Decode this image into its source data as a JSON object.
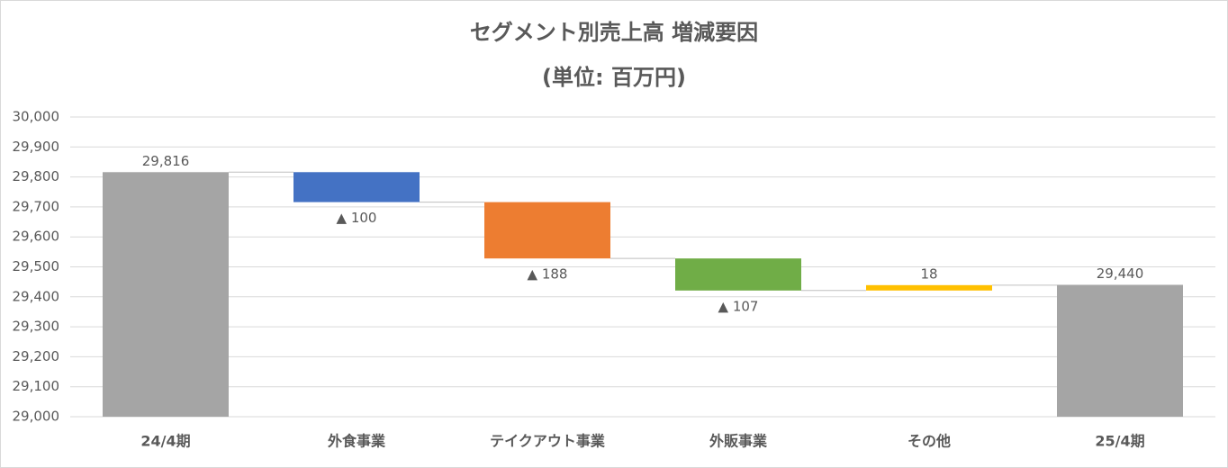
{
  "chart_data": {
    "type": "waterfall",
    "title": "セグメント別売上高 増減要因",
    "subtitle": "(単位: 百万円)",
    "categories": [
      "24/4期",
      "外食事業",
      "テイクアウト事業",
      "外販事業",
      "その他",
      "25/4期"
    ],
    "values": [
      29816,
      -100,
      -188,
      -107,
      18,
      29440
    ],
    "value_labels": [
      "29,816",
      "▲ 100",
      "▲ 188",
      "▲ 107",
      "18",
      "29,440"
    ],
    "is_total": [
      true,
      false,
      false,
      false,
      false,
      true
    ],
    "colors": [
      "#a5a5a5",
      "#4472c4",
      "#ed7d31",
      "#70ad47",
      "#ffc000",
      "#a5a5a5"
    ],
    "ylim": [
      29000,
      30000
    ],
    "yticks": [
      {
        "value": 29000,
        "label": "29,000"
      },
      {
        "value": 29100,
        "label": "29,100"
      },
      {
        "value": 29200,
        "label": "29,200"
      },
      {
        "value": 29300,
        "label": "29,300"
      },
      {
        "value": 29400,
        "label": "29,400"
      },
      {
        "value": 29500,
        "label": "29,500"
      },
      {
        "value": 29600,
        "label": "29,600"
      },
      {
        "value": 29700,
        "label": "29,700"
      },
      {
        "value": 29800,
        "label": "29,800"
      },
      {
        "value": 29900,
        "label": "29,900"
      },
      {
        "value": 30000,
        "label": "30,000"
      }
    ],
    "grid": true
  }
}
